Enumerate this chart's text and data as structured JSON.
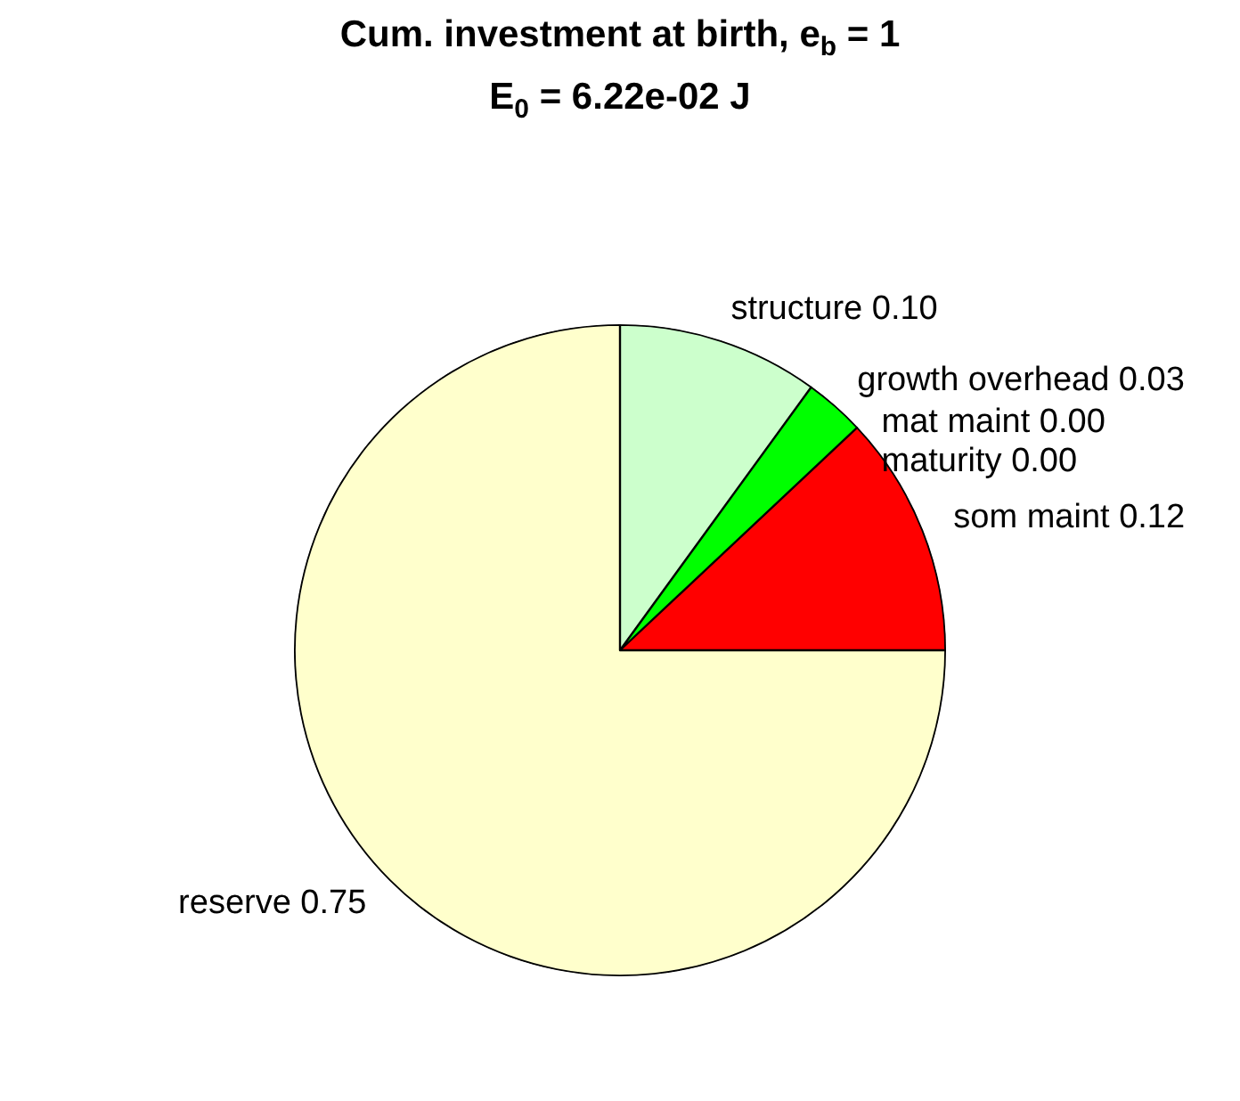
{
  "chart_data": {
    "type": "pie",
    "title": "Cum. investment at birth, e$_{b}$ = 1",
    "subtitle": "E$_{0}$ = 6.22e-02 J",
    "categories": [
      "structure",
      "growth overhead",
      "mat maint",
      "maturity",
      "som maint",
      "reserve"
    ],
    "values": [
      0.1,
      0.03,
      0.0,
      0.0,
      0.12,
      0.75
    ],
    "value_labels": [
      "0.10",
      "0.03",
      "0.00",
      "0.00",
      "0.12",
      "0.75"
    ],
    "colors": [
      "#ccffcc",
      "#00ff00",
      "#0000ff",
      "#ff00ff",
      "#ff0000",
      "#ffffcc"
    ]
  }
}
